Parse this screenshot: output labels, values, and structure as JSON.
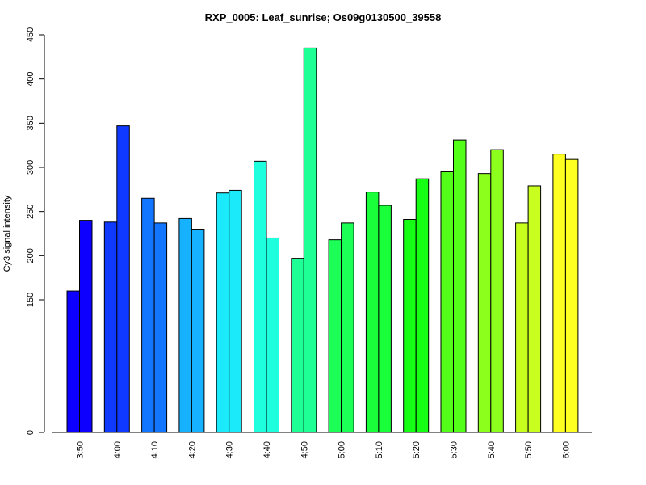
{
  "chart_data": {
    "type": "bar",
    "title": "RXP_0005: Leaf_sunrise; Os09g0130500_39558",
    "xlabel": "",
    "ylabel": "Cy3 signal intensity",
    "y_ticks": [
      0,
      150,
      200,
      250,
      300,
      350,
      400,
      450
    ],
    "ylim": [
      0,
      450
    ],
    "y_scale": "broken: 0 then 150–450 linear",
    "grid": false,
    "legend": "none",
    "categories": [
      "3:50",
      "4:00",
      "4:10",
      "4:20",
      "4:30",
      "4:40",
      "4:50",
      "5:00",
      "5:10",
      "5:20",
      "5:30",
      "5:40",
      "5:50",
      "6:00"
    ],
    "series": [
      {
        "values": [
          160,
          238,
          265,
          242,
          271,
          307,
          197,
          218,
          272,
          241,
          295,
          293,
          237,
          315
        ]
      },
      {
        "values": [
          240,
          347,
          237,
          230,
          274,
          220,
          435,
          237,
          257,
          287,
          331,
          320,
          279,
          309
        ]
      }
    ],
    "group_colors": [
      "#0d00ff",
      "#0f39ff",
      "#1276ff",
      "#16b1ff",
      "#1aeafa",
      "#1effde",
      "#1eff96",
      "#1cff56",
      "#19ff3a",
      "#15ff14",
      "#53ff18",
      "#8dff1c",
      "#c8ff1f",
      "#ffff22"
    ]
  }
}
